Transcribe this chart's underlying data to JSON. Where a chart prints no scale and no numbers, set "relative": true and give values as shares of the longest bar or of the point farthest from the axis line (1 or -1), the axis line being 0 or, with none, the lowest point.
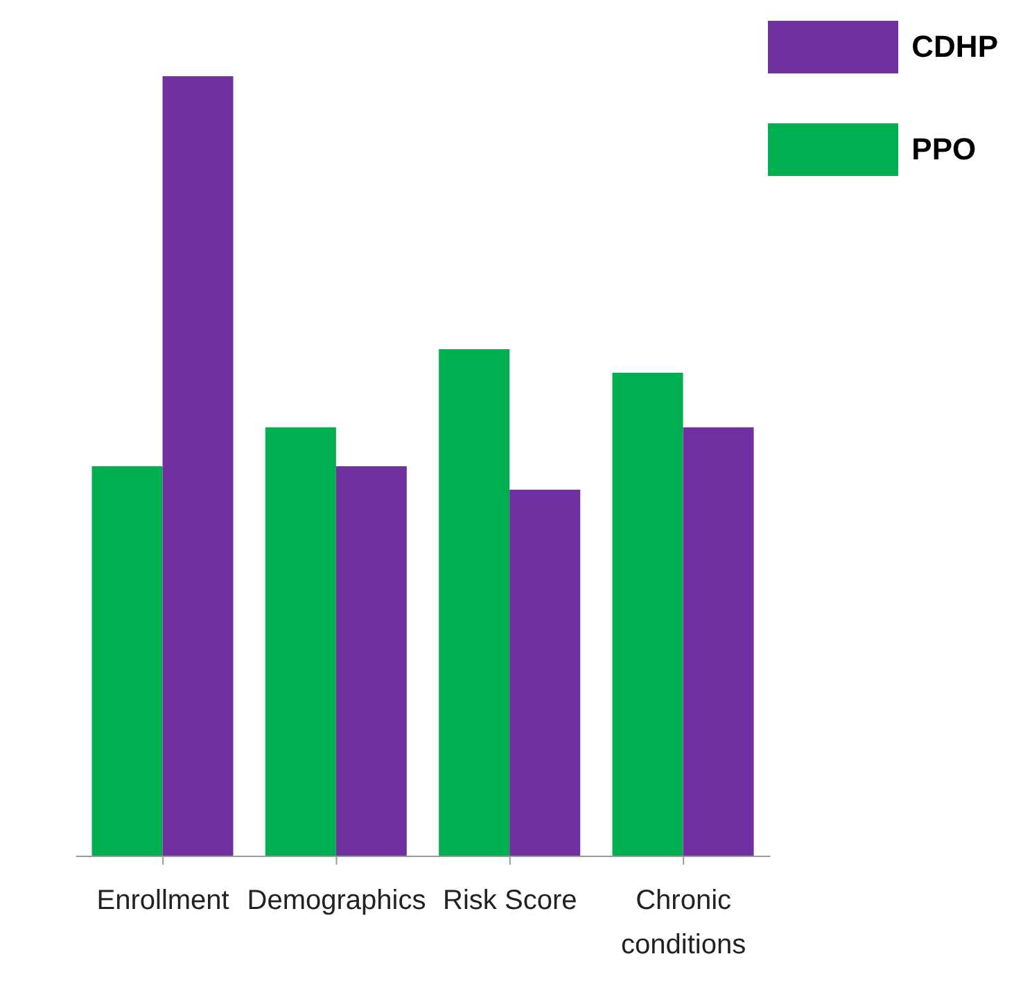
{
  "chart_data": {
    "type": "bar",
    "relative": true,
    "categories": [
      "Enrollment",
      "Demographics",
      "Risk Score",
      "Chronic conditions"
    ],
    "series": [
      {
        "name": "PPO",
        "color": "#00b050",
        "values": [
          0.5,
          0.55,
          0.65,
          0.62
        ]
      },
      {
        "name": "CDHP",
        "color": "#7030a0",
        "values": [
          1.0,
          0.5,
          0.47,
          0.55
        ]
      }
    ],
    "legend": "top right",
    "grid": false
  }
}
